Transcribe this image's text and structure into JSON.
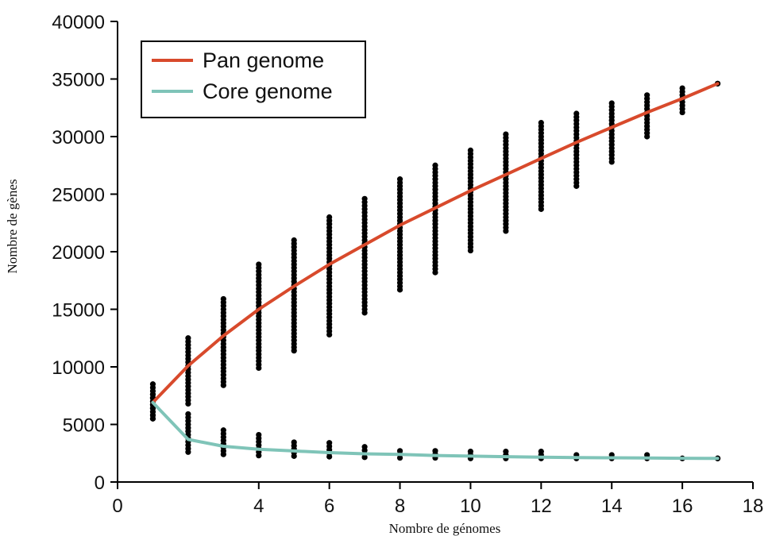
{
  "chart_data": {
    "type": "scatter",
    "xlabel": "Nombre de génomes",
    "ylabel": "Nombre de gènes",
    "xlim": [
      0,
      18
    ],
    "ylim": [
      0,
      40000
    ],
    "x_ticks": [
      "0",
      "4",
      "6",
      "8",
      "10",
      "12",
      "14",
      "16",
      "18"
    ],
    "x_tick_values": [
      0,
      4,
      6,
      8,
      10,
      12,
      14,
      16,
      18
    ],
    "y_ticks": [
      "0",
      "5000",
      "10000",
      "15000",
      "20000",
      "25000",
      "30000",
      "35000",
      "40000"
    ],
    "y_tick_values": [
      0,
      5000,
      10000,
      15000,
      20000,
      25000,
      30000,
      35000,
      40000
    ],
    "grid": false,
    "legend_position": "top-left",
    "series": [
      {
        "name": "Pan genome",
        "color": "#d84a2c",
        "x": [
          1,
          2,
          3,
          4,
          5,
          6,
          7,
          8,
          9,
          10,
          11,
          12,
          13,
          14,
          15,
          16,
          17
        ],
        "values": [
          6900,
          10100,
          12700,
          15000,
          17000,
          18900,
          20600,
          22300,
          23800,
          25300,
          26700,
          28100,
          29500,
          30800,
          32100,
          33300,
          34600
        ]
      },
      {
        "name": "Core genome",
        "color": "#7fc4b8",
        "x": [
          1,
          2,
          3,
          4,
          5,
          6,
          7,
          8,
          9,
          10,
          11,
          12,
          13,
          14,
          15,
          16,
          17
        ],
        "values": [
          6900,
          3700,
          3100,
          2850,
          2700,
          2550,
          2450,
          2400,
          2300,
          2250,
          2200,
          2150,
          2120,
          2100,
          2080,
          2060,
          2050
        ]
      }
    ],
    "pan_distribution": [
      {
        "x": 1,
        "min": 5500,
        "max": 8700
      },
      {
        "x": 2,
        "min": 6800,
        "max": 12700
      },
      {
        "x": 3,
        "min": 8400,
        "max": 16000
      },
      {
        "x": 4,
        "min": 9900,
        "max": 18900
      },
      {
        "x": 5,
        "min": 11400,
        "max": 21100
      },
      {
        "x": 6,
        "min": 12800,
        "max": 23000
      },
      {
        "x": 7,
        "min": 14700,
        "max": 24700
      },
      {
        "x": 8,
        "min": 16700,
        "max": 26400
      },
      {
        "x": 9,
        "min": 18200,
        "max": 27700
      },
      {
        "x": 10,
        "min": 20100,
        "max": 29000
      },
      {
        "x": 11,
        "min": 21800,
        "max": 30200
      },
      {
        "x": 12,
        "min": 23700,
        "max": 31300
      },
      {
        "x": 13,
        "min": 25700,
        "max": 32200
      },
      {
        "x": 14,
        "min": 27800,
        "max": 33000
      },
      {
        "x": 15,
        "min": 30000,
        "max": 33800
      },
      {
        "x": 16,
        "min": 32100,
        "max": 34400
      },
      {
        "x": 17,
        "min": 34600,
        "max": 34600
      }
    ],
    "core_distribution": [
      {
        "x": 1,
        "min": 5500,
        "max": 7800
      },
      {
        "x": 2,
        "min": 2600,
        "max": 6000
      },
      {
        "x": 3,
        "min": 2400,
        "max": 4600
      },
      {
        "x": 4,
        "min": 2300,
        "max": 4100
      },
      {
        "x": 5,
        "min": 2250,
        "max": 3700
      },
      {
        "x": 6,
        "min": 2200,
        "max": 3400
      },
      {
        "x": 7,
        "min": 2150,
        "max": 3100
      },
      {
        "x": 8,
        "min": 2100,
        "max": 2950
      },
      {
        "x": 9,
        "min": 2100,
        "max": 2800
      },
      {
        "x": 10,
        "min": 2050,
        "max": 2750
      },
      {
        "x": 11,
        "min": 2050,
        "max": 2700
      },
      {
        "x": 12,
        "min": 2050,
        "max": 2650
      },
      {
        "x": 13,
        "min": 2050,
        "max": 2550
      },
      {
        "x": 14,
        "min": 2050,
        "max": 2450
      },
      {
        "x": 15,
        "min": 2050,
        "max": 2400
      },
      {
        "x": 16,
        "min": 2050,
        "max": 2300
      },
      {
        "x": 17,
        "min": 2050,
        "max": 2050
      }
    ],
    "point_color": "#000000"
  }
}
